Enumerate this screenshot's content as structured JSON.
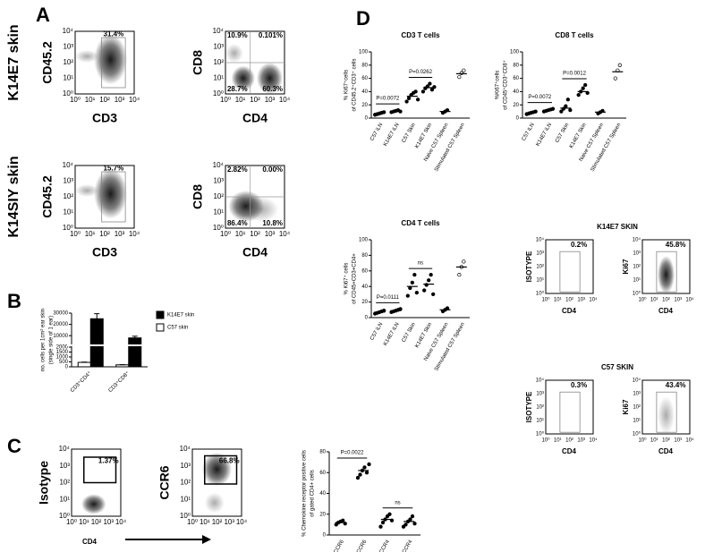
{
  "panel_labels": [
    "A",
    "B",
    "C",
    "D"
  ],
  "flow_ticks": [
    "10⁰",
    "10¹",
    "10²",
    "10³",
    "10⁴"
  ],
  "panel_a": {
    "rows": [
      {
        "label": "K14E7 skin",
        "plots": [
          {
            "x_label": "CD3",
            "y_label": "CD45.2",
            "gates": [
              "31.4%"
            ]
          },
          {
            "x_label": "CD4",
            "y_label": "CD8",
            "gates": [
              "10.9%",
              "0.101%",
              "28.7%",
              "60.3%"
            ]
          }
        ]
      },
      {
        "label": "K14SIY skin",
        "plots": [
          {
            "x_label": "CD3",
            "y_label": "CD45.2",
            "gates": [
              "15.7%"
            ]
          },
          {
            "x_label": "CD4",
            "y_label": "CD8",
            "gates": [
              "2.82%",
              "0.00%",
              "86.4%",
              "10.8%"
            ]
          }
        ]
      }
    ]
  },
  "panel_c_flow": {
    "x_label": "CD4",
    "plots": [
      {
        "y_label": "Isotype",
        "gate": "1.37%"
      },
      {
        "y_label": "CCR6",
        "gate": "66.8%"
      }
    ]
  },
  "panel_d_flow": {
    "x_label": "CD4",
    "groups": [
      {
        "title": "K14E7 SKIN",
        "plots": [
          {
            "y_label": "ISOTYPE",
            "gate": "0.2%"
          },
          {
            "y_label": "Ki67",
            "gate": "45.8%"
          }
        ]
      },
      {
        "title": "C57 SKIN",
        "plots": [
          {
            "y_label": "ISOTYPE",
            "gate": "0.3%"
          },
          {
            "y_label": "Ki67",
            "gate": "43.4%"
          }
        ]
      }
    ]
  },
  "chart_data": [
    {
      "type": "bar",
      "y_label": [
        "no. cells per 1cm² ear skin",
        "(single side of 1 ear)"
      ],
      "categories": [
        "CD3⁺CD4⁺",
        "CD3⁺CD8⁺"
      ],
      "series": [
        {
          "name": "K14E7 skin",
          "color": "#000000",
          "values": [
            25000,
            8000
          ],
          "errors": [
            4500,
            1500
          ]
        },
        {
          "name": "C57 skin",
          "color": "#ffffff",
          "values": [
            450,
            200
          ],
          "errors": [
            30,
            20
          ]
        }
      ],
      "ylim": [
        0,
        30000
      ],
      "ybreak": [
        2000,
        3000
      ],
      "yticks": [
        0,
        500,
        1000,
        1500,
        2000,
        10000,
        20000,
        30000
      ]
    },
    {
      "type": "dot",
      "y_label": [
        "% Chemokine receptor positive cells",
        "of gated CD4+ cells"
      ],
      "categories": [
        "LN CCR6",
        "Skin CCR6",
        "LN CCR4",
        "Skin CCR4"
      ],
      "points": [
        [
          10,
          12,
          13,
          14,
          11
        ],
        [
          55,
          58,
          62,
          65,
          60,
          68
        ],
        [
          8,
          12,
          15,
          18,
          20,
          14
        ],
        [
          8,
          10,
          13,
          15,
          18,
          11
        ]
      ],
      "means": [
        12,
        62,
        15,
        13
      ],
      "ylim": [
        0,
        80
      ],
      "yticks": [
        0,
        20,
        40,
        60,
        80
      ],
      "annotations": [
        "P=0.0022",
        "ns"
      ]
    },
    {
      "type": "dot",
      "title": "CD3 T cells",
      "y_label": [
        "% Ki67⁺cells",
        "of CD45.2⁺CD3⁺ cells"
      ],
      "categories": [
        "C57 iLN",
        "K14E7 iLN",
        "C57 Skin",
        "K14E7 Skin",
        "Naive C57 Spleen",
        "Stimulated C57 Spleen"
      ],
      "points": [
        [
          5,
          6,
          7,
          8,
          9
        ],
        [
          9,
          10,
          11,
          12,
          10
        ],
        [
          25,
          30,
          35,
          38,
          40,
          28
        ],
        [
          40,
          45,
          48,
          52,
          43,
          47
        ],
        [
          8,
          10,
          12
        ],
        [
          62,
          68,
          72
        ]
      ],
      "means": [
        7,
        10,
        33,
        46,
        10,
        67
      ],
      "ylim": [
        0,
        100
      ],
      "yticks": [
        0,
        20,
        40,
        60,
        80,
        100
      ],
      "annotations": [
        "P=0.0072",
        "P=0.0262"
      ]
    },
    {
      "type": "dot",
      "title": "CD8 T cells",
      "y_label": [
        "%Ki67⁺cells",
        "of CD45⁺CD3⁺CD8⁺"
      ],
      "categories": [
        "C57 iLN",
        "K14E7 iLN",
        "C57 Skin",
        "K14E7 Skin",
        "Naive C57 Spleen",
        "Stimulated C57 Spleen"
      ],
      "points": [
        [
          6,
          7,
          8,
          9,
          10
        ],
        [
          10,
          11,
          12,
          13,
          14
        ],
        [
          10,
          14,
          18,
          28,
          12
        ],
        [
          35,
          40,
          45,
          50,
          38
        ],
        [
          7,
          9,
          11
        ],
        [
          60,
          72,
          80
        ]
      ],
      "means": [
        8,
        12,
        15,
        40,
        9,
        70
      ],
      "ylim": [
        0,
        100
      ],
      "yticks": [
        0,
        20,
        40,
        60,
        80,
        100
      ],
      "annotations": [
        "P=0.0072",
        "P=0.0012"
      ]
    },
    {
      "type": "dot",
      "title": "CD4 T cells",
      "y_label": [
        "% Ki67⁺ cells",
        "of CD45+CD3+CD4+"
      ],
      "categories": [
        "C57 iLN",
        "K14E7 iLN",
        "C57 Skin",
        "K14E7 Skin",
        "Naive C57 Spleen",
        "Stimulated C57 Spleen"
      ],
      "points": [
        [
          5,
          6,
          7,
          8,
          9
        ],
        [
          7,
          8,
          9,
          10,
          11
        ],
        [
          28,
          38,
          45,
          55,
          32
        ],
        [
          35,
          42,
          48,
          55,
          30
        ],
        [
          8,
          10,
          12
        ],
        [
          55,
          65,
          72
        ]
      ],
      "means": [
        7,
        9,
        40,
        43,
        10,
        65
      ],
      "ylim": [
        0,
        100
      ],
      "yticks": [
        0,
        20,
        40,
        60,
        80,
        100
      ],
      "annotations": [
        "P=0.0111",
        "ns"
      ]
    }
  ]
}
